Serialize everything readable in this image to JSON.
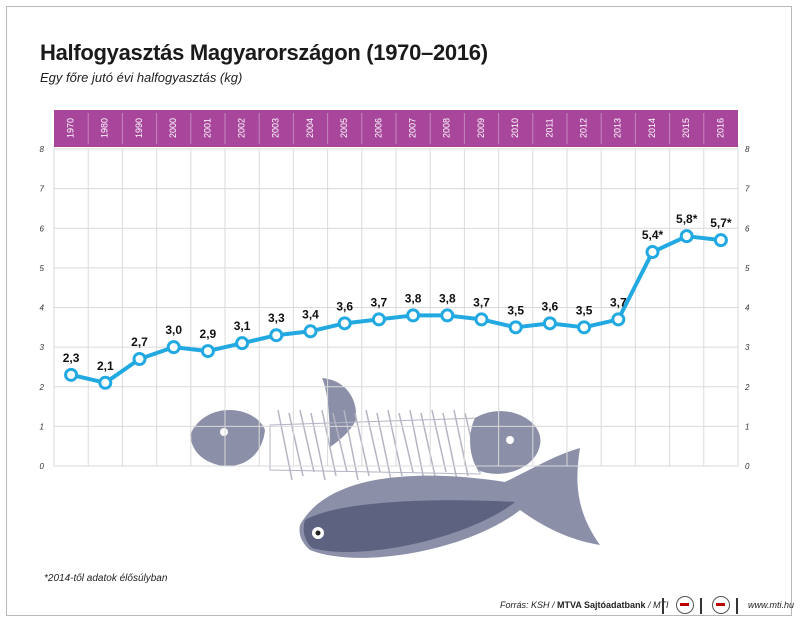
{
  "header": {
    "title": "Halfogyasztás Magyarországon (1970–2016)",
    "subtitle": "Egy főre jutó évi halfogyasztás (kg)"
  },
  "footer": {
    "footnote": "*2014-től adatok élősúlyban",
    "source_prefix": "Forrás: KSH / ",
    "source_bold": "MTVA Sajtóadatbank",
    "source_suffix": " / MTI",
    "site": "www.mti.hu"
  },
  "colors": {
    "band": "#a8469c",
    "line": "#22a9e1",
    "grid": "#dadada",
    "fish_body": "#8b8fa8",
    "fish_dark": "#5e6281"
  },
  "illustration": {
    "icon": "fish-illustration"
  },
  "chart_data": {
    "type": "line",
    "categories": [
      "1970",
      "1980",
      "1990",
      "2000",
      "2001",
      "2002",
      "2003",
      "2004",
      "2005",
      "2006",
      "2007",
      "2008",
      "2009",
      "2010",
      "2011",
      "2012",
      "2013",
      "2014",
      "2015",
      "2016"
    ],
    "series": [
      {
        "values": [
          2.3,
          2.1,
          2.7,
          3.0,
          2.9,
          3.1,
          3.3,
          3.4,
          3.6,
          3.7,
          3.8,
          3.8,
          3.7,
          3.5,
          3.6,
          3.5,
          3.7,
          5.4,
          5.8,
          5.7
        ]
      }
    ],
    "data_labels": [
      "2,3",
      "2,1",
      "2,7",
      "3,0",
      "2,9",
      "3,1",
      "3,3",
      "3,4",
      "3,6",
      "3,7",
      "3,8",
      "3,8",
      "3,7",
      "3,5",
      "3,6",
      "3,5",
      "3,7",
      "5,4*",
      "5,8*",
      "5,7*"
    ],
    "ylim": [
      0,
      8
    ],
    "yticks": [
      "0",
      "1",
      "2",
      "3",
      "4",
      "5",
      "6",
      "7",
      "8"
    ],
    "y_axis_sides": [
      "left",
      "right"
    ],
    "grid": true
  }
}
